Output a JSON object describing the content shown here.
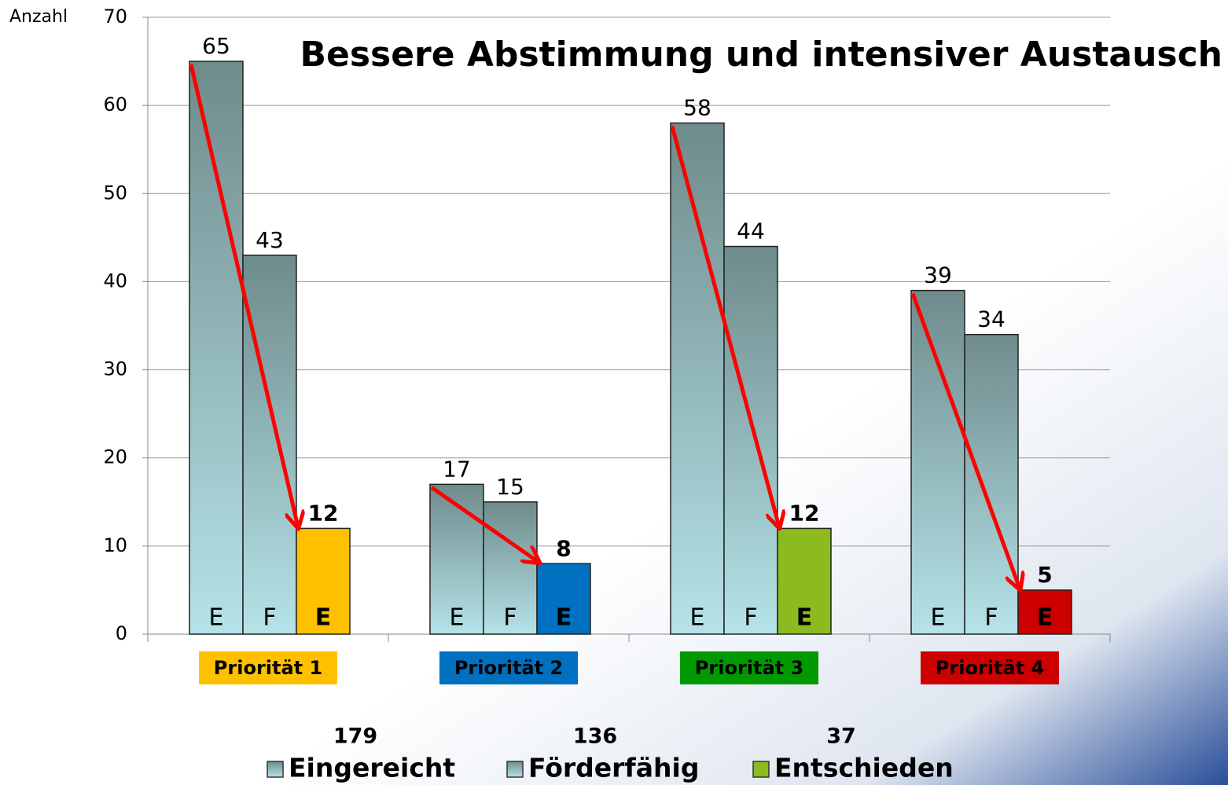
{
  "chart_data": {
    "type": "bar",
    "title": "Bessere Abstimmung und intensiver Austausch",
    "y_label": "Anzahl",
    "categories": [
      "Priorität 1",
      "Priorität 2",
      "Priorität 3",
      "Priorität 4"
    ],
    "category_colors": [
      "#ffc000",
      "#0070c0",
      "#009a00",
      "#cc0000"
    ],
    "series": [
      {
        "name": "Eingereicht",
        "letter": "E",
        "color": "#6f8b8c",
        "total": 179,
        "values": [
          65,
          17,
          58,
          39
        ]
      },
      {
        "name": "Förderfähig",
        "letter": "F",
        "color": "#6f8b8c",
        "total": 136,
        "values": [
          43,
          15,
          44,
          34
        ]
      },
      {
        "name": "Entschieden",
        "letter": "E",
        "color": "#8dbb1f",
        "total": 37,
        "values": [
          12,
          8,
          12,
          5
        ],
        "point_colors": [
          "#ffc000",
          "#0070c0",
          "#8dbb1f",
          "#cc0000"
        ]
      }
    ],
    "ylim": [
      0,
      70
    ],
    "yticks": [
      0,
      10,
      20,
      30,
      40,
      50,
      60,
      70
    ],
    "grid": true
  }
}
